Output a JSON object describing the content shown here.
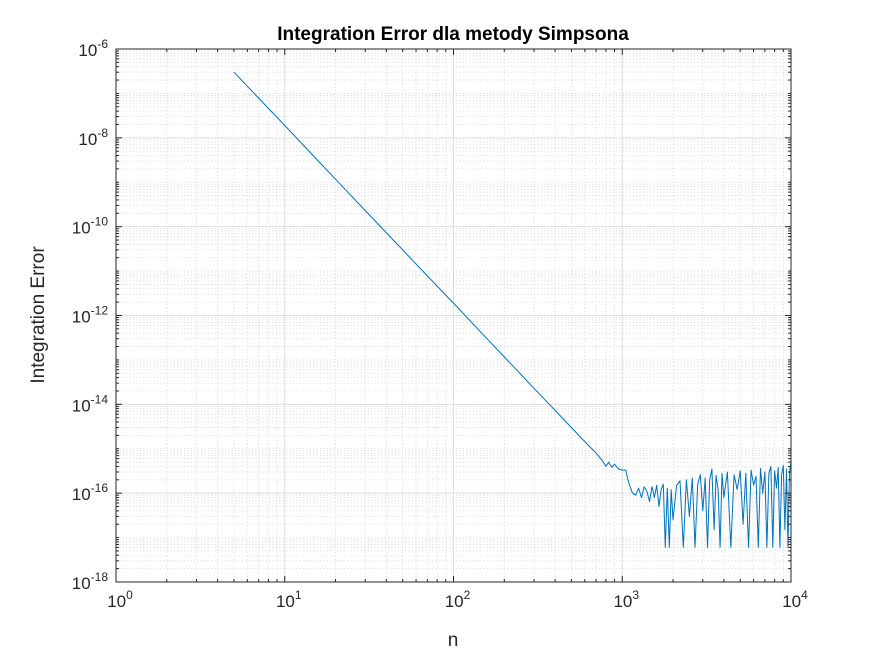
{
  "chart_data": {
    "type": "line",
    "title": "Integration Error dla metody Simpsona",
    "xlabel": "n",
    "ylabel": "Integration Error",
    "xscale": "log",
    "yscale": "log",
    "xlim": [
      1,
      10000
    ],
    "ylim": [
      1e-18,
      1e-06
    ],
    "grid": "on (major and minor)",
    "x_ticks": [
      {
        "base": "10",
        "exp": "0",
        "value": 1
      },
      {
        "base": "10",
        "exp": "1",
        "value": 10
      },
      {
        "base": "10",
        "exp": "2",
        "value": 100
      },
      {
        "base": "10",
        "exp": "3",
        "value": 1000
      },
      {
        "base": "10",
        "exp": "4",
        "value": 10000
      }
    ],
    "y_ticks": [
      {
        "base": "10",
        "exp": "-6",
        "value": 1e-06
      },
      {
        "base": "10",
        "exp": "-8",
        "value": 1e-08
      },
      {
        "base": "10",
        "exp": "-10",
        "value": 1e-10
      },
      {
        "base": "10",
        "exp": "-12",
        "value": 1e-12
      },
      {
        "base": "10",
        "exp": "-14",
        "value": 1e-14
      },
      {
        "base": "10",
        "exp": "-16",
        "value": 1e-16
      },
      {
        "base": "10",
        "exp": "-18",
        "value": 1e-18
      }
    ],
    "series": [
      {
        "color": "#0072BD",
        "x": [
          5,
          8,
          10,
          15,
          20,
          30,
          50,
          80,
          100,
          150,
          200,
          300,
          400,
          500,
          600,
          700,
          760,
          800,
          830,
          870,
          900,
          950,
          1000,
          1050,
          1080,
          1100,
          1150,
          1200,
          1250,
          1300,
          1350,
          1400,
          1450,
          1500,
          1550,
          1600,
          1650,
          1700,
          1750,
          1800,
          1850,
          1900,
          1950,
          2000,
          2100,
          2200,
          2300,
          2400,
          2500,
          2600,
          2700,
          2800,
          2900,
          3000,
          3100,
          3200,
          3300,
          3400,
          3500,
          3600,
          3700,
          3800,
          3900,
          4000,
          4200,
          4400,
          4600,
          4800,
          5000,
          5200,
          5400,
          5600,
          5800,
          6000,
          6200,
          6400,
          6600,
          6800,
          7000,
          7200,
          7400,
          7600,
          7800,
          8000,
          8200,
          8400,
          8600,
          8800,
          9000,
          9200,
          9400,
          9600,
          9800,
          10000
        ],
        "y": [
          3e-07,
          4.6e-08,
          1.9e-08,
          3.7e-09,
          1.17e-09,
          2.3e-10,
          3e-11,
          4.6e-12,
          1.9e-12,
          3.7e-13,
          1.17e-13,
          2.3e-14,
          7.3e-15,
          3e-15,
          1.45e-15,
          8e-16,
          5.5e-16,
          4e-16,
          5e-16,
          3.8e-16,
          4.5e-16,
          3.5e-16,
          3.3e-16,
          3.3e-16,
          2e-16,
          1.6e-16,
          1e-16,
          9e-17,
          1.3e-16,
          8e-17,
          1.4e-16,
          1.1e-16,
          6.5e-17,
          1.4e-16,
          8e-17,
          1.5e-16,
          5e-17,
          1.2e-16,
          1.6e-16,
          6e-18,
          1.3e-16,
          6e-18,
          1.2e-16,
          2.5e-17,
          1.5e-16,
          1.9e-16,
          6e-18,
          2e-16,
          3e-17,
          2.2e-16,
          6e-18,
          1.6e-16,
          2.6e-16,
          4e-17,
          2.2e-16,
          6e-18,
          2e-16,
          3.5e-16,
          1.5e-17,
          2.5e-16,
          1.2e-16,
          6e-18,
          2.8e-16,
          8e-17,
          3e-16,
          6e-18,
          2.6e-16,
          1.2e-16,
          3.2e-16,
          2e-17,
          2.8e-16,
          6e-18,
          3.3e-16,
          1.5e-16,
          2.4e-16,
          6e-18,
          3.6e-16,
          1e-16,
          3e-16,
          6e-18,
          2.8e-16,
          4e-16,
          6e-18,
          3.2e-16,
          1.3e-16,
          3.8e-16,
          6e-18,
          2.6e-16,
          4.2e-16,
          1.5e-17,
          3.5e-16,
          6e-18,
          3e-16,
          5e-16
        ]
      }
    ]
  }
}
